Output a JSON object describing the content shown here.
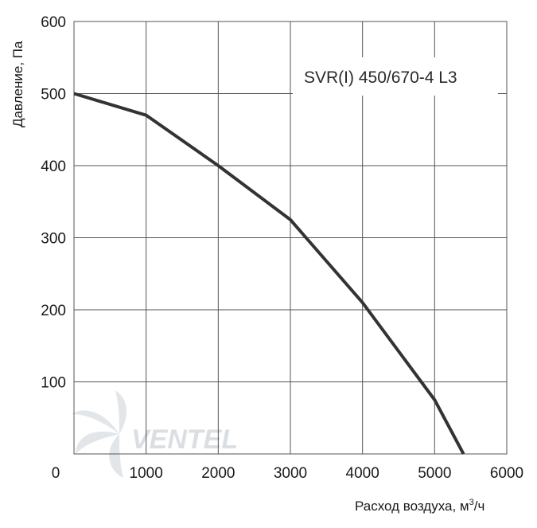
{
  "chart_data": {
    "type": "line",
    "title": "SVR(I) 450/670-4 L3",
    "xlabel": "Расход воздуха, м³/ч",
    "ylabel": "Давление, Па",
    "xlim": [
      0,
      6000
    ],
    "ylim": [
      0,
      600
    ],
    "x_ticks": [
      "0",
      "1000",
      "2000",
      "3000",
      "4000",
      "5000",
      "6000"
    ],
    "y_ticks": [
      "100",
      "200",
      "300",
      "400",
      "500",
      "600"
    ],
    "grid": true,
    "series": [
      {
        "x": [
          0,
          1000,
          2000,
          3000,
          4000,
          5000,
          5400
        ],
        "y": [
          500,
          470,
          400,
          325,
          210,
          75,
          0
        ],
        "color": "#333333"
      }
    ]
  },
  "watermark": "VENTEL"
}
